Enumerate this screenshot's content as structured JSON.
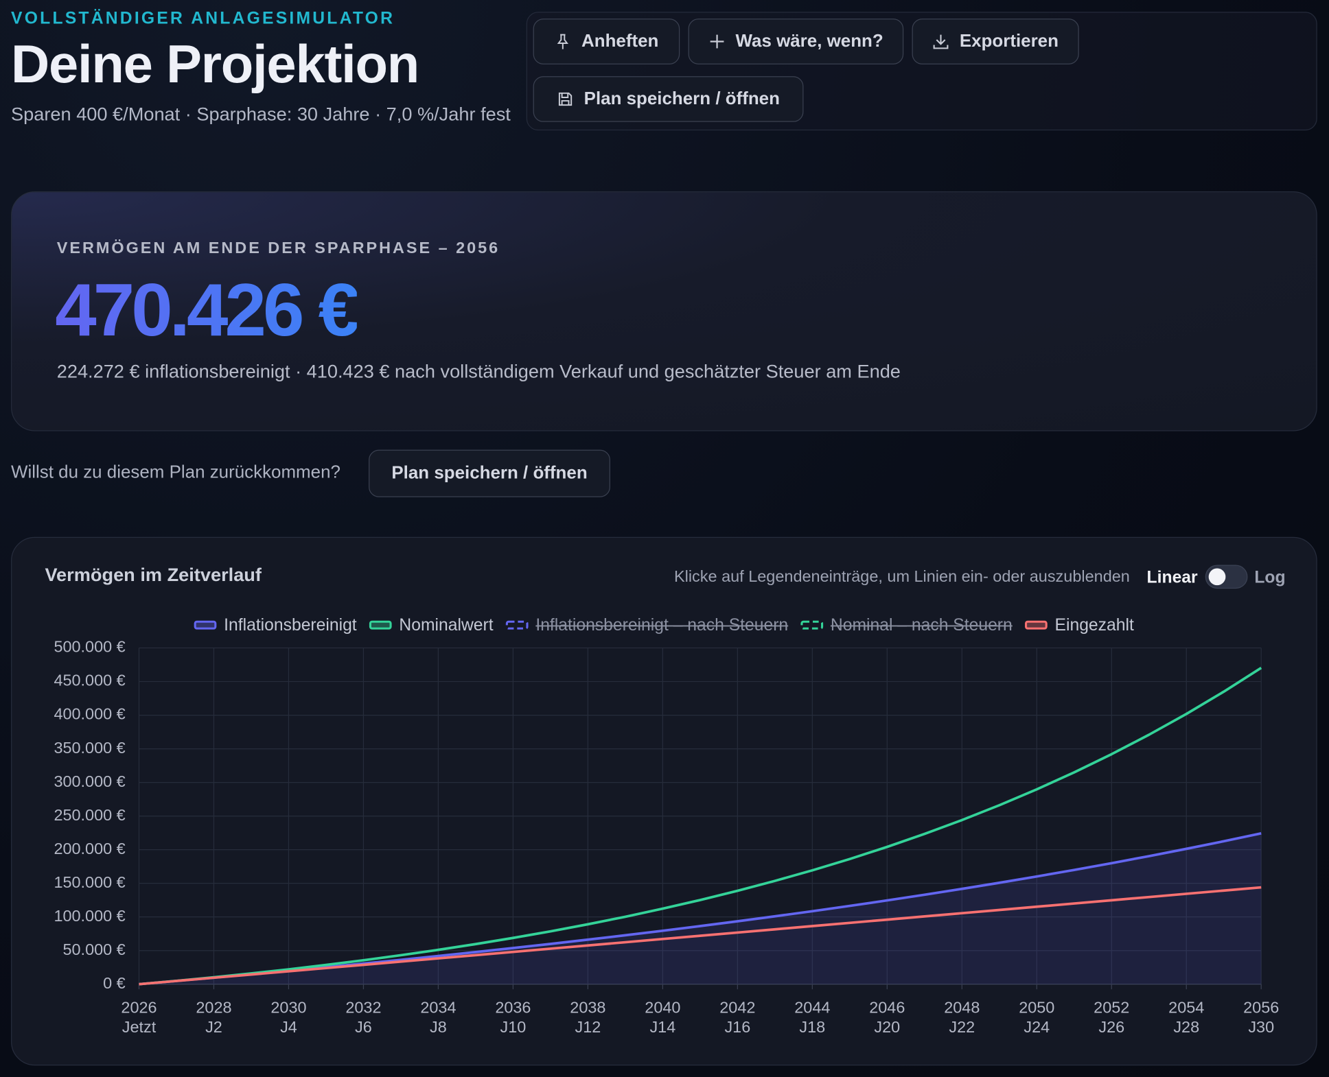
{
  "header": {
    "eyebrow": "VOLLSTÄNDIGER ANLAGESIMULATOR",
    "title": "Deine Projektion",
    "subtitle": "Sparen 400 €/Monat · Sparphase: 30 Jahre · 7,0 %/Jahr fest"
  },
  "toolbar": {
    "buttons": [
      "Anheften",
      "Was wäre, wenn?",
      "Exportieren",
      "Plan speichern / öffnen"
    ]
  },
  "summary": {
    "label": "VERMÖGEN AM ENDE DER SPARPHASE – 2056",
    "value": "470.426 €",
    "detail": "224.272 € inflationsbereinigt · 410.423 € nach vollständigem Verkauf und geschätzter Steuer am Ende"
  },
  "save_prompt": {
    "text": "Willst du zu diesem Plan zurückkommen?",
    "button": "Plan speichern / öffnen"
  },
  "chart_panel": {
    "title": "Vermögen im Zeitverlauf",
    "hint": "Klicke auf Legendeneinträge, um Linien ein- oder auszublenden",
    "scale_options": [
      "Linear",
      "Log"
    ]
  },
  "chart_data": {
    "type": "line",
    "x": [
      2026,
      2027,
      2028,
      2029,
      2030,
      2031,
      2032,
      2033,
      2034,
      2035,
      2036,
      2037,
      2038,
      2039,
      2040,
      2041,
      2042,
      2043,
      2044,
      2045,
      2046,
      2047,
      2048,
      2049,
      2050,
      2051,
      2052,
      2053,
      2054,
      2055,
      2056
    ],
    "xlim": [
      2026,
      2056
    ],
    "xticks": [
      2026,
      2028,
      2030,
      2032,
      2034,
      2036,
      2038,
      2040,
      2042,
      2044,
      2046,
      2048,
      2050,
      2052,
      2054,
      2056
    ],
    "xtick_sublabels": [
      "Jetzt",
      "J2",
      "J4",
      "J6",
      "J8",
      "J10",
      "J12",
      "J14",
      "J16",
      "J18",
      "J20",
      "J22",
      "J24",
      "J26",
      "J28",
      "J30"
    ],
    "ylim": [
      0,
      500000
    ],
    "yticks": [
      {
        "value": 0,
        "label": "0 €"
      },
      {
        "value": 50000,
        "label": "50.000 €"
      },
      {
        "value": 100000,
        "label": "100.000 €"
      },
      {
        "value": 150000,
        "label": "150.000 €"
      },
      {
        "value": 200000,
        "label": "200.000 €"
      },
      {
        "value": 250000,
        "label": "250.000 €"
      },
      {
        "value": 300000,
        "label": "300.000 €"
      },
      {
        "value": 350000,
        "label": "350.000 €"
      },
      {
        "value": 400000,
        "label": "400.000 €"
      },
      {
        "value": 450000,
        "label": "450.000 €"
      },
      {
        "value": 500000,
        "label": "500.000 €"
      }
    ],
    "log_scale": false,
    "grid": true,
    "series": [
      {
        "name": "Inflationsbereinigt",
        "color": "#6366f1",
        "fill": true,
        "values": [
          0,
          4859,
          9812,
          14868,
          20032,
          25314,
          30718,
          36257,
          41936,
          47764,
          53753,
          59908,
          66241,
          72763,
          79481,
          86409,
          93558,
          100939,
          108562,
          116444,
          124595,
          133031,
          141764,
          150810,
          160184,
          169906,
          179982,
          190441,
          201296,
          212570,
          224272
        ]
      },
      {
        "name": "Nominalwert",
        "color": "#34d399",
        "values": [
          0,
          4980,
          10309,
          16011,
          22112,
          28640,
          35624,
          43098,
          51095,
          59652,
          68808,
          78605,
          89087,
          100304,
          112305,
          125146,
          138887,
          153589,
          169320,
          186154,
          204164,
          223436,
          244058,
          266121,
          289728,
          314994,
          342020,
          370941,
          401887,
          435004,
          470426
        ]
      },
      {
        "name": "Inflationsbereinigt – nach Steuern",
        "color": "#6366f1",
        "dash": true,
        "hidden": true
      },
      {
        "name": "Nominal – nach Steuern",
        "color": "#34d399",
        "dash": true,
        "hidden": true
      },
      {
        "name": "Eingezahlt",
        "color": "#f87171",
        "values": [
          0,
          4800,
          9600,
          14400,
          19200,
          24000,
          28800,
          33600,
          38400,
          43200,
          48000,
          52800,
          57600,
          62400,
          67200,
          72000,
          76800,
          81600,
          86400,
          91200,
          96000,
          100800,
          105600,
          110400,
          115200,
          120000,
          124800,
          129600,
          134400,
          139200,
          144000
        ]
      }
    ]
  }
}
